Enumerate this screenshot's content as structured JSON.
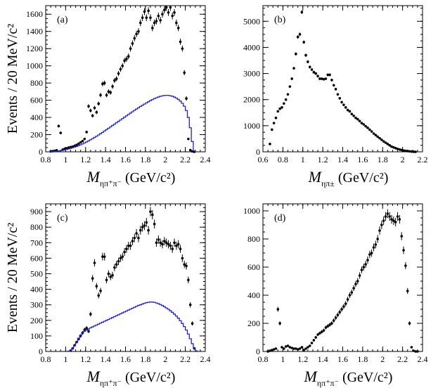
{
  "chart_data": [
    {
      "type": "scatter",
      "label": "(a)",
      "xlim": [
        0.8,
        2.4
      ],
      "ylim": [
        0,
        1700
      ],
      "xticks": [
        0.8,
        1,
        1.2,
        1.4,
        1.6,
        1.8,
        2,
        2.2,
        2.4
      ],
      "yticks": [
        0,
        200,
        400,
        600,
        800,
        1000,
        1200,
        1400,
        1600
      ],
      "xlabel": {
        "main": "M",
        "sub": "ηπ⁺π⁻",
        "unit": " (GeV/c²)"
      },
      "ylabel": "Events / 20 MeV/c²",
      "series": [
        {
          "kind": "data_points",
          "color": "#000000",
          "x": [
            0.85,
            0.87,
            0.89,
            0.91,
            0.93,
            0.95,
            0.97,
            0.99,
            1.01,
            1.03,
            1.05,
            1.07,
            1.09,
            1.11,
            1.13,
            1.15,
            1.17,
            1.19,
            1.21,
            1.23,
            1.25,
            1.27,
            1.29,
            1.31,
            1.33,
            1.35,
            1.37,
            1.39,
            1.41,
            1.43,
            1.45,
            1.47,
            1.49,
            1.51,
            1.53,
            1.55,
            1.57,
            1.59,
            1.61,
            1.63,
            1.65,
            1.67,
            1.69,
            1.71,
            1.73,
            1.75,
            1.77,
            1.79,
            1.81,
            1.83,
            1.85,
            1.87,
            1.89,
            1.91,
            1.93,
            1.95,
            1.97,
            1.99,
            2.01,
            2.03,
            2.05,
            2.07,
            2.09,
            2.11,
            2.13,
            2.15,
            2.17,
            2.19,
            2.21,
            2.23,
            2.25,
            2.27,
            2.29
          ],
          "y": [
            5,
            8,
            12,
            18,
            300,
            220,
            25,
            35,
            40,
            50,
            55,
            60,
            70,
            80,
            95,
            110,
            125,
            150,
            230,
            530,
            480,
            420,
            510,
            460,
            560,
            660,
            790,
            800,
            660,
            700,
            690,
            760,
            830,
            850,
            910,
            960,
            1000,
            1060,
            1080,
            1110,
            1200,
            1260,
            1320,
            1370,
            1400,
            1500,
            1560,
            1630,
            1560,
            1640,
            1560,
            1440,
            1500,
            1520,
            1580,
            1530,
            1600,
            1650,
            1680,
            1620,
            1680,
            1580,
            1620,
            1500,
            1440,
            1280,
            1200,
            920,
            620,
            150,
            20,
            5,
            0
          ]
        },
        {
          "kind": "mc_histogram",
          "color": "#1f1fe0",
          "x": [
            0.85,
            0.87,
            0.89,
            0.91,
            0.93,
            0.95,
            0.97,
            0.99,
            1.01,
            1.03,
            1.05,
            1.07,
            1.09,
            1.11,
            1.13,
            1.15,
            1.17,
            1.19,
            1.21,
            1.23,
            1.25,
            1.27,
            1.29,
            1.31,
            1.33,
            1.35,
            1.37,
            1.39,
            1.41,
            1.43,
            1.45,
            1.47,
            1.49,
            1.51,
            1.53,
            1.55,
            1.57,
            1.59,
            1.61,
            1.63,
            1.65,
            1.67,
            1.69,
            1.71,
            1.73,
            1.75,
            1.77,
            1.79,
            1.81,
            1.83,
            1.85,
            1.87,
            1.89,
            1.91,
            1.93,
            1.95,
            1.97,
            1.99,
            2.01,
            2.03,
            2.05,
            2.07,
            2.09,
            2.11,
            2.13,
            2.15,
            2.17,
            2.19,
            2.21,
            2.23,
            2.25,
            2.27,
            2.29
          ],
          "y": [
            2,
            3,
            5,
            7,
            10,
            14,
            18,
            22,
            28,
            34,
            40,
            47,
            55,
            63,
            72,
            82,
            92,
            103,
            115,
            127,
            140,
            153,
            167,
            181,
            196,
            211,
            226,
            242,
            258,
            274,
            290,
            306,
            322,
            338,
            354,
            370,
            386,
            402,
            418,
            434,
            450,
            466,
            482,
            497,
            512,
            527,
            541,
            555,
            569,
            582,
            595,
            607,
            618,
            628,
            637,
            645,
            651,
            655,
            657,
            656,
            652,
            646,
            637,
            625,
            610,
            590,
            565,
            530,
            480,
            400,
            280,
            120,
            10
          ]
        }
      ]
    },
    {
      "type": "scatter",
      "label": "(b)",
      "xlim": [
        0.6,
        2.2
      ],
      "ylim": [
        0,
        5600
      ],
      "xticks": [
        0.6,
        0.8,
        1,
        1.2,
        1.4,
        1.6,
        1.8,
        2,
        2.2
      ],
      "yticks": [
        0,
        1000,
        2000,
        3000,
        4000,
        5000
      ],
      "xlabel": {
        "main": "M",
        "sub": "ηπ±",
        "unit": " (GeV/c²)"
      },
      "ylabel": "",
      "series": [
        {
          "kind": "data_points",
          "color": "#000000",
          "x": [
            0.67,
            0.69,
            0.71,
            0.73,
            0.75,
            0.77,
            0.79,
            0.81,
            0.83,
            0.85,
            0.87,
            0.89,
            0.91,
            0.93,
            0.95,
            0.97,
            0.99,
            1.01,
            1.03,
            1.05,
            1.07,
            1.09,
            1.11,
            1.13,
            1.15,
            1.17,
            1.19,
            1.21,
            1.23,
            1.25,
            1.27,
            1.29,
            1.31,
            1.33,
            1.35,
            1.37,
            1.39,
            1.41,
            1.43,
            1.45,
            1.47,
            1.49,
            1.51,
            1.53,
            1.55,
            1.57,
            1.59,
            1.61,
            1.63,
            1.65,
            1.67,
            1.69,
            1.71,
            1.73,
            1.75,
            1.77,
            1.79,
            1.81,
            1.83,
            1.85,
            1.87,
            1.89,
            1.91,
            1.93,
            1.95,
            1.97,
            1.99,
            2.01,
            2.03,
            2.05,
            2.07,
            2.09,
            2.11,
            2.13
          ],
          "y": [
            300,
            850,
            1100,
            1300,
            1550,
            1650,
            1700,
            1850,
            2000,
            2200,
            2500,
            2800,
            3200,
            3750,
            4400,
            4500,
            5350,
            4200,
            3700,
            3450,
            3250,
            3150,
            3050,
            3000,
            2900,
            2800,
            2800,
            2780,
            2800,
            2950,
            2950,
            2750,
            2550,
            2400,
            2200,
            2050,
            1900,
            1800,
            1700,
            1600,
            1550,
            1450,
            1380,
            1300,
            1250,
            1180,
            1100,
            1050,
            980,
            920,
            850,
            780,
            700,
            640,
            580,
            520,
            460,
            400,
            350,
            300,
            250,
            200,
            170,
            140,
            110,
            90,
            70,
            50,
            40,
            30,
            20,
            10,
            5,
            0
          ]
        }
      ]
    },
    {
      "type": "scatter",
      "label": "(c)",
      "xlim": [
        0.8,
        2.4
      ],
      "ylim": [
        0,
        950
      ],
      "xticks": [
        0.8,
        1,
        1.2,
        1.4,
        1.6,
        1.8,
        2,
        2.2,
        2.4
      ],
      "yticks": [
        0,
        100,
        200,
        300,
        400,
        500,
        600,
        700,
        800,
        900
      ],
      "xlabel": {
        "main": "M",
        "sub": "ηπ⁺π⁻",
        "unit": " (GeV/c²)"
      },
      "ylabel": "Events / 20 MeV/c²",
      "series": [
        {
          "kind": "data_points",
          "color": "#000000",
          "x": [
            1.05,
            1.07,
            1.09,
            1.11,
            1.13,
            1.15,
            1.17,
            1.19,
            1.21,
            1.23,
            1.25,
            1.27,
            1.29,
            1.31,
            1.33,
            1.35,
            1.37,
            1.39,
            1.41,
            1.43,
            1.45,
            1.47,
            1.49,
            1.51,
            1.53,
            1.55,
            1.57,
            1.59,
            1.61,
            1.63,
            1.65,
            1.67,
            1.69,
            1.71,
            1.73,
            1.75,
            1.77,
            1.79,
            1.81,
            1.83,
            1.85,
            1.87,
            1.89,
            1.91,
            1.93,
            1.95,
            1.97,
            1.99,
            2.01,
            2.03,
            2.05,
            2.07,
            2.09,
            2.11,
            2.13,
            2.15,
            2.17,
            2.19,
            2.21,
            2.23,
            2.25,
            2.27,
            2.29
          ],
          "y": [
            5,
            20,
            40,
            60,
            80,
            100,
            120,
            140,
            150,
            130,
            240,
            470,
            570,
            420,
            360,
            390,
            610,
            610,
            460,
            500,
            480,
            490,
            540,
            560,
            580,
            600,
            610,
            640,
            660,
            680,
            680,
            710,
            730,
            760,
            730,
            780,
            800,
            810,
            830,
            780,
            900,
            880,
            820,
            700,
            720,
            700,
            690,
            710,
            700,
            690,
            680,
            660,
            700,
            680,
            690,
            660,
            600,
            560,
            550,
            460,
            300,
            180,
            20
          ]
        },
        {
          "kind": "mc_histogram",
          "color": "#1f1fe0",
          "x": [
            1.03,
            1.05,
            1.07,
            1.09,
            1.11,
            1.13,
            1.15,
            1.17,
            1.19,
            1.21,
            1.23,
            1.25,
            1.27,
            1.29,
            1.31,
            1.33,
            1.35,
            1.37,
            1.39,
            1.41,
            1.43,
            1.45,
            1.47,
            1.49,
            1.51,
            1.53,
            1.55,
            1.57,
            1.59,
            1.61,
            1.63,
            1.65,
            1.67,
            1.69,
            1.71,
            1.73,
            1.75,
            1.77,
            1.79,
            1.81,
            1.83,
            1.85,
            1.87,
            1.89,
            1.91,
            1.93,
            1.95,
            1.97,
            1.99,
            2.01,
            2.03,
            2.05,
            2.07,
            2.09,
            2.11,
            2.13,
            2.15,
            2.17,
            2.19,
            2.21,
            2.23,
            2.25,
            2.27,
            2.29,
            2.31
          ],
          "y": [
            2,
            8,
            20,
            40,
            60,
            85,
            105,
            120,
            130,
            138,
            145,
            152,
            158,
            164,
            170,
            176,
            182,
            188,
            194,
            200,
            206,
            212,
            218,
            224,
            230,
            236,
            242,
            248,
            254,
            260,
            266,
            272,
            278,
            284,
            290,
            296,
            300,
            305,
            310,
            314,
            316,
            318,
            318,
            316,
            312,
            308,
            302,
            296,
            288,
            280,
            272,
            262,
            252,
            240,
            228,
            214,
            198,
            180,
            160,
            138,
            112,
            82,
            50,
            20,
            4
          ]
        }
      ]
    },
    {
      "type": "scatter",
      "label": "(d)",
      "xlim": [
        0.8,
        2.4
      ],
      "ylim": [
        0,
        1050
      ],
      "xticks": [
        0.8,
        1,
        1.2,
        1.4,
        1.6,
        1.8,
        2,
        2.2,
        2.4
      ],
      "yticks": [
        0,
        200,
        400,
        600,
        800,
        1000
      ],
      "xlabel": {
        "main": "M",
        "sub": "ηπ⁺π⁻",
        "unit": " (GeV/c²)"
      },
      "ylabel": "",
      "series": [
        {
          "kind": "data_points",
          "color": "#000000",
          "x": [
            0.85,
            0.87,
            0.89,
            0.91,
            0.93,
            0.95,
            0.97,
            0.99,
            1.01,
            1.03,
            1.05,
            1.07,
            1.09,
            1.11,
            1.13,
            1.15,
            1.17,
            1.19,
            1.21,
            1.23,
            1.25,
            1.27,
            1.29,
            1.31,
            1.33,
            1.35,
            1.37,
            1.39,
            1.41,
            1.43,
            1.45,
            1.47,
            1.49,
            1.51,
            1.53,
            1.55,
            1.57,
            1.59,
            1.61,
            1.63,
            1.65,
            1.67,
            1.69,
            1.71,
            1.73,
            1.75,
            1.77,
            1.79,
            1.81,
            1.83,
            1.85,
            1.87,
            1.89,
            1.91,
            1.93,
            1.95,
            1.97,
            1.99,
            2.01,
            2.03,
            2.05,
            2.07,
            2.09,
            2.11,
            2.13,
            2.15,
            2.17,
            2.19,
            2.21,
            2.23,
            2.25,
            2.27,
            2.29,
            2.31,
            2.33,
            2.35
          ],
          "y": [
            0,
            5,
            10,
            15,
            20,
            300,
            200,
            30,
            20,
            35,
            40,
            30,
            25,
            20,
            20,
            15,
            20,
            30,
            10,
            20,
            30,
            40,
            60,
            80,
            100,
            120,
            130,
            140,
            150,
            170,
            180,
            190,
            200,
            220,
            240,
            260,
            280,
            300,
            320,
            340,
            370,
            400,
            420,
            450,
            480,
            500,
            540,
            580,
            600,
            620,
            650,
            690,
            700,
            740,
            760,
            800,
            860,
            900,
            930,
            960,
            980,
            960,
            940,
            930,
            920,
            960,
            940,
            820,
            720,
            610,
            430,
            200,
            30,
            5,
            0,
            0
          ]
        }
      ]
    }
  ]
}
